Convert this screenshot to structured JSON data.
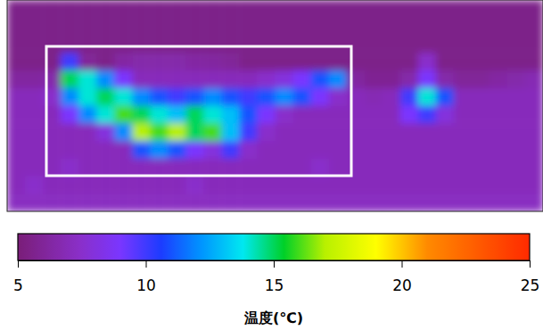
{
  "chart_data": {
    "type": "heatmap",
    "cells": [
      [
        5.5,
        5.5,
        5.5,
        5.5,
        5.5,
        5.5,
        5.5,
        5.5,
        5.5,
        5.5,
        5.5,
        5.5,
        5.5,
        5.5,
        5.5,
        5.5,
        5.5,
        5.5,
        5.5,
        5.5,
        5.5,
        5.5,
        5.5,
        5.5,
        5.5,
        5.5,
        5.5,
        5.5,
        5.5,
        5.5
      ],
      [
        5.5,
        5.5,
        5.5,
        5.5,
        5.5,
        5.5,
        5.5,
        5.5,
        5.5,
        5.5,
        5.5,
        5.5,
        5.5,
        5.5,
        5.5,
        5.5,
        5.5,
        5.5,
        5.5,
        5.5,
        5.5,
        5.5,
        5.5,
        5.5,
        5.5,
        5.5,
        5.5,
        5.5,
        5.5,
        5.5
      ],
      [
        5.5,
        5.5,
        5.5,
        5.5,
        5.5,
        5.5,
        5.5,
        5.5,
        5.5,
        5.5,
        5.5,
        5.5,
        5.5,
        5.5,
        5.5,
        5.5,
        5.5,
        5.5,
        5.5,
        5.5,
        5.5,
        5.5,
        5.5,
        5.5,
        5.5,
        5.5,
        5.5,
        5.5,
        5.5,
        5.5
      ],
      [
        5.5,
        5.5,
        5.5,
        10,
        6,
        5.5,
        6.3,
        6.5,
        6.5,
        6.5,
        6.3,
        6.2,
        6,
        5.5,
        5.5,
        5.5,
        5.5,
        5.5,
        5.5,
        5.5,
        5.5,
        5.5,
        5.5,
        7.5,
        5.5,
        5.5,
        5.5,
        5.5,
        5.5,
        5.5
      ],
      [
        6.2,
        6.2,
        6.5,
        15,
        14,
        12,
        9,
        7,
        7,
        7,
        7,
        7,
        7,
        7,
        7.5,
        8,
        9,
        11,
        12,
        6.2,
        5.8,
        5.8,
        6.5,
        9,
        6.5,
        6,
        6,
        6.3,
        6.5,
        6.8
      ],
      [
        7,
        7,
        7.5,
        12,
        14,
        15,
        14,
        12,
        11,
        10,
        11,
        12,
        11,
        10,
        11,
        12,
        11,
        9,
        7.5,
        7,
        6.8,
        7,
        10,
        14,
        11,
        7,
        7,
        7,
        7,
        7
      ],
      [
        7,
        7,
        7,
        9,
        12,
        14,
        16,
        15,
        14,
        13,
        15,
        14,
        13,
        11,
        9,
        7.5,
        7,
        7,
        7,
        7,
        7,
        7,
        9,
        10,
        8,
        7,
        7,
        7,
        7,
        7
      ],
      [
        7,
        7,
        7,
        7,
        7,
        8,
        12,
        17,
        16,
        17,
        15,
        16,
        13,
        10,
        7.5,
        7,
        7,
        7,
        7,
        7,
        7,
        7,
        7,
        7,
        7,
        7,
        7,
        7,
        7,
        7
      ],
      [
        7,
        7,
        7,
        7,
        7,
        7,
        7,
        11,
        12,
        11,
        9,
        8,
        10,
        7.5,
        7,
        7,
        7,
        7,
        7,
        7,
        7,
        7,
        7,
        7,
        7,
        7,
        7,
        7,
        7,
        7
      ],
      [
        7,
        7,
        7,
        7.5,
        7,
        7,
        7,
        7,
        7,
        7,
        7,
        7,
        7,
        7,
        7,
        7,
        7,
        7.5,
        7,
        7,
        7,
        7,
        7,
        7,
        7,
        7,
        7,
        7,
        7,
        7
      ],
      [
        7,
        7.5,
        7,
        7,
        7,
        7,
        7,
        7,
        7,
        7,
        7.5,
        7,
        7,
        7,
        7,
        7,
        7,
        7,
        7,
        7,
        7,
        7,
        7,
        7,
        7,
        7,
        7,
        7,
        7,
        7
      ],
      [
        7.2,
        7.2,
        7.2,
        7.2,
        7.2,
        7.2,
        7.2,
        7.2,
        7.2,
        7.2,
        7.2,
        7.2,
        7.2,
        7.2,
        7.2,
        7.2,
        7.2,
        7.2,
        7.2,
        7.2,
        7.2,
        7.2,
        7.2,
        7.2,
        7.2,
        7.2,
        7.2,
        7.2,
        7.2,
        7.2
      ]
    ],
    "colorbar": {
      "range": [
        5,
        25
      ],
      "ticks": [
        5,
        10,
        15,
        20,
        25
      ],
      "label": "温度(℃)"
    }
  }
}
